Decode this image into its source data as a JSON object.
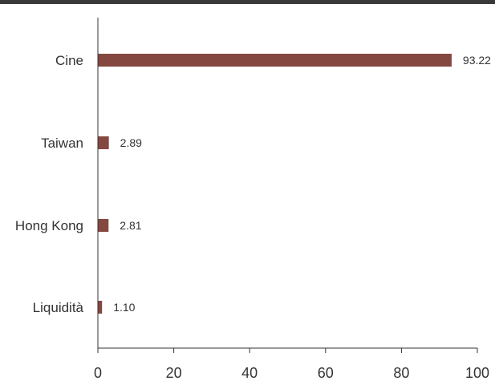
{
  "chart_data": {
    "type": "bar",
    "orientation": "horizontal",
    "categories": [
      "Cine",
      "Taiwan",
      "Hong Kong",
      "Liquidità"
    ],
    "values": [
      93.22,
      2.89,
      2.81,
      1.1
    ],
    "value_labels": [
      "93.22",
      "2.89",
      "2.81",
      "1.10"
    ],
    "xlim": [
      0,
      100
    ],
    "x_ticks": [
      0,
      20,
      40,
      60,
      80,
      100
    ],
    "x_tick_labels": [
      "0",
      "20",
      "40",
      "60",
      "80",
      "100"
    ],
    "title": "",
    "xlabel": "",
    "ylabel": "",
    "grid": false,
    "colors": {
      "bar": "#844840",
      "axis": "#333333",
      "text": "#333333",
      "top_rule": "#3a3a3a"
    }
  }
}
